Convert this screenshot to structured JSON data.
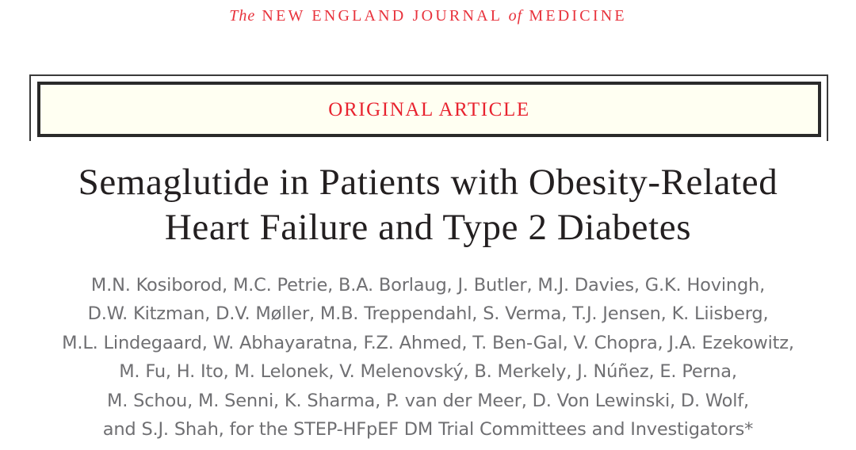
{
  "journal": {
    "prefix": "The",
    "name_part1": "NEW ENGLAND JOURNAL",
    "connector": "of",
    "name_part2": "MEDICINE",
    "color": "#e8323c"
  },
  "article_type": {
    "label": "ORIGINAL ARTICLE",
    "label_color": "#e8232f",
    "box_fill": "#fffff2",
    "border_color": "#2a2a2a"
  },
  "title": {
    "lines": [
      "Semaglutide in Patients with Obesity-Related",
      "Heart Failure and Type 2 Diabetes"
    ],
    "full": "Semaglutide in Patients with Obesity-Related Heart Failure and Type 2 Diabetes",
    "color": "#231f20"
  },
  "authors": {
    "lines": [
      "M.N. Kosiborod, M.C. Petrie, B.A. Borlaug, J. Butler, M.J. Davies, G.K. Hovingh,",
      "D.W. Kitzman, D.V. Møller, M.B. Treppendahl, S. Verma, T.J. Jensen, K. Liisberg,",
      "M.L. Lindegaard, W. Abhayaratna, F.Z. Ahmed, T. Ben-Gal, V. Chopra, J.A. Ezekowitz,",
      "M. Fu, H. Ito, M. Lelonek, V. Melenovský, B. Merkely, J. Núñez, E. Perna,",
      "M. Schou, M. Senni, K. Sharma, P. van der Meer, D. Von Lewinski, D. Wolf,",
      "and S.J. Shah, for the STEP-HFpEF DM Trial Committees and Investigators*"
    ],
    "footnote_marker": "*",
    "color": "#6f6f72"
  }
}
